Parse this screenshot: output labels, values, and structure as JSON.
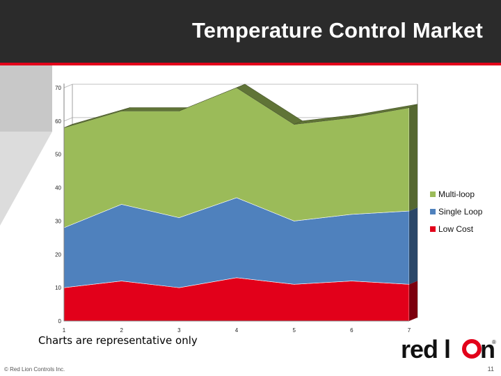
{
  "slide": {
    "title": "Temperature Control Market",
    "note": "Charts are representative only",
    "copyright": "© Red Lion Controls Inc.",
    "page_number": "11",
    "logo_text": "red lion"
  },
  "colors": {
    "header_bg": "#2b2b2b",
    "accent_red": "#e2001a",
    "multi_loop": "#9bbb59",
    "single_loop": "#4f81bd",
    "low_cost": "#e2001a"
  },
  "chart_data": {
    "type": "area",
    "stacked": true,
    "three_d": true,
    "title": "",
    "xlabel": "",
    "ylabel": "",
    "x": [
      1,
      2,
      3,
      4,
      5,
      6,
      7
    ],
    "ylim": [
      0,
      70
    ],
    "yticks": [
      0,
      10,
      20,
      30,
      40,
      50,
      60,
      70
    ],
    "grid": true,
    "legend_position": "right",
    "series": [
      {
        "name": "Low Cost",
        "color": "#e2001a",
        "values": [
          10,
          12,
          10,
          13,
          11,
          12,
          11
        ]
      },
      {
        "name": "Single Loop",
        "color": "#4f81bd",
        "values": [
          18,
          23,
          21,
          24,
          19,
          20,
          22
        ]
      },
      {
        "name": "Multi-loop",
        "color": "#9bbb59",
        "values": [
          30,
          28,
          32,
          33,
          29,
          29,
          31
        ]
      }
    ],
    "legend_order": [
      "Multi-loop",
      "Single Loop",
      "Low Cost"
    ]
  }
}
